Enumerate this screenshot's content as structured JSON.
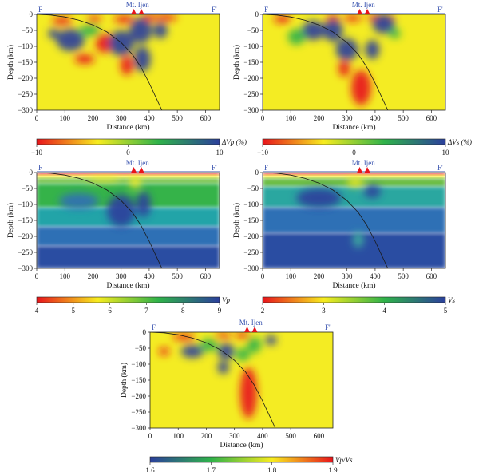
{
  "common": {
    "volcano_label": "Mt. Ijen",
    "profile_start": "F",
    "profile_end": "F'",
    "xlabel": "Distance (km)",
    "ylabel": "Depth (km)",
    "x_ticks": [
      0,
      100,
      200,
      300,
      400,
      500,
      600
    ],
    "y_ticks": [
      0,
      -50,
      -100,
      -150,
      -200,
      -250,
      -300
    ],
    "xlim": [
      0,
      650
    ],
    "ylim": [
      -300,
      0
    ],
    "volcano_x_km": [
      345,
      372
    ],
    "slab_curve_km": [
      [
        0,
        0
      ],
      [
        50,
        -2
      ],
      [
        100,
        -8
      ],
      [
        150,
        -18
      ],
      [
        200,
        -33
      ],
      [
        250,
        -55
      ],
      [
        300,
        -88
      ],
      [
        340,
        -125
      ],
      [
        370,
        -165
      ],
      [
        400,
        -215
      ],
      [
        425,
        -262
      ],
      [
        445,
        -300
      ]
    ]
  },
  "panels": [
    {
      "id": "dvp",
      "colorbar_label": "ΔVp (%)",
      "colorbar_ticks": [
        "−10",
        "0",
        "10"
      ],
      "colormap": [
        "#e8141b",
        "#f7ec1f",
        "#2fb24a",
        "#2b3f9c"
      ],
      "background_color": "#f4ec23",
      "anomalies": [
        {
          "x": 90,
          "y": -20,
          "rx": 35,
          "ry": 12,
          "color": "#e8141b"
        },
        {
          "x": 205,
          "y": -15,
          "rx": 25,
          "ry": 10,
          "color": "#e8141b"
        },
        {
          "x": 310,
          "y": -15,
          "rx": 35,
          "ry": 12,
          "color": "#e8141b"
        },
        {
          "x": 400,
          "y": -10,
          "rx": 30,
          "ry": 10,
          "color": "#e8141b"
        },
        {
          "x": 460,
          "y": -10,
          "rx": 40,
          "ry": 10,
          "color": "#e8141b"
        },
        {
          "x": 120,
          "y": -80,
          "rx": 50,
          "ry": 35,
          "color": "#2b3f9c"
        },
        {
          "x": 190,
          "y": -50,
          "rx": 35,
          "ry": 18,
          "color": "#2fb24a"
        },
        {
          "x": 240,
          "y": -90,
          "rx": 30,
          "ry": 30,
          "color": "#e8141b"
        },
        {
          "x": 300,
          "y": -90,
          "rx": 45,
          "ry": 40,
          "color": "#2b3f9c"
        },
        {
          "x": 370,
          "y": -50,
          "rx": 40,
          "ry": 40,
          "color": "#2b3f9c"
        },
        {
          "x": 320,
          "y": -160,
          "rx": 22,
          "ry": 30,
          "color": "#e8141b"
        },
        {
          "x": 375,
          "y": -140,
          "rx": 30,
          "ry": 40,
          "color": "#2b3f9c"
        },
        {
          "x": 440,
          "y": -50,
          "rx": 25,
          "ry": 25,
          "color": "#2b3f9c"
        },
        {
          "x": 170,
          "y": -140,
          "rx": 35,
          "ry": 15,
          "color": "#e8141b"
        },
        {
          "x": 60,
          "y": -60,
          "rx": 20,
          "ry": 15,
          "color": "#2b3f9c"
        }
      ]
    },
    {
      "id": "dvs",
      "colorbar_label": "ΔVs (%)",
      "colorbar_ticks": [
        "−10",
        "0",
        "10"
      ],
      "colormap": [
        "#e8141b",
        "#f7ec1f",
        "#2fb24a",
        "#2b3f9c"
      ],
      "background_color": "#f4ec23",
      "anomalies": [
        {
          "x": 70,
          "y": -15,
          "rx": 30,
          "ry": 12,
          "color": "#e8141b"
        },
        {
          "x": 250,
          "y": -10,
          "rx": 25,
          "ry": 8,
          "color": "#e8141b"
        },
        {
          "x": 320,
          "y": -12,
          "rx": 30,
          "ry": 10,
          "color": "#e8141b"
        },
        {
          "x": 420,
          "y": -10,
          "rx": 50,
          "ry": 10,
          "color": "#e8141b"
        },
        {
          "x": 180,
          "y": -50,
          "rx": 40,
          "ry": 30,
          "color": "#2b3f9c"
        },
        {
          "x": 250,
          "y": -50,
          "rx": 35,
          "ry": 35,
          "color": "#2b3f9c"
        },
        {
          "x": 120,
          "y": -70,
          "rx": 30,
          "ry": 25,
          "color": "#2fb24a"
        },
        {
          "x": 300,
          "y": -110,
          "rx": 40,
          "ry": 35,
          "color": "#2b3f9c"
        },
        {
          "x": 350,
          "y": -230,
          "rx": 35,
          "ry": 55,
          "color": "#e8141b"
        },
        {
          "x": 290,
          "y": -170,
          "rx": 20,
          "ry": 25,
          "color": "#e8141b"
        },
        {
          "x": 390,
          "y": -110,
          "rx": 25,
          "ry": 30,
          "color": "#2b3f9c"
        },
        {
          "x": 430,
          "y": -30,
          "rx": 40,
          "ry": 30,
          "color": "#2b3f9c"
        },
        {
          "x": 470,
          "y": -60,
          "rx": 20,
          "ry": 15,
          "color": "#2fb24a"
        }
      ]
    },
    {
      "id": "vp",
      "colorbar_label": "Vp",
      "colorbar_ticks": [
        "4",
        "5",
        "6",
        "7",
        "8",
        "9"
      ],
      "colormap": [
        "#e8141b",
        "#f7ec1f",
        "#2fb24a",
        "#2b3f9c"
      ],
      "layers": [
        {
          "top": 0,
          "bottom": -8,
          "color": "#e8141b"
        },
        {
          "top": -8,
          "bottom": -18,
          "color": "#f4ec23"
        },
        {
          "top": -18,
          "bottom": -35,
          "color": "#7dc346"
        },
        {
          "top": -35,
          "bottom": -110,
          "color": "#35b34a"
        },
        {
          "top": -110,
          "bottom": -170,
          "color": "#20a4a8"
        },
        {
          "top": -170,
          "bottom": -230,
          "color": "#2f6fb5"
        },
        {
          "top": -230,
          "bottom": -300,
          "color": "#2b4ea2"
        }
      ],
      "anomalies": [
        {
          "x": 150,
          "y": -90,
          "rx": 70,
          "ry": 25,
          "color": "#2f6fb5"
        },
        {
          "x": 300,
          "y": -120,
          "rx": 50,
          "ry": 50,
          "color": "#2b3f9c"
        },
        {
          "x": 380,
          "y": -100,
          "rx": 25,
          "ry": 40,
          "color": "#2b3f9c"
        },
        {
          "x": 350,
          "y": -30,
          "rx": 20,
          "ry": 20,
          "color": "#f4ec23"
        },
        {
          "x": 240,
          "y": -20,
          "rx": 60,
          "ry": 8,
          "color": "#f4ec23"
        }
      ]
    },
    {
      "id": "vs",
      "colorbar_label": "Vs",
      "colorbar_ticks": [
        "2",
        "3",
        "4",
        "5"
      ],
      "colormap": [
        "#e8141b",
        "#f7ec1f",
        "#2fb24a",
        "#2b3f9c"
      ],
      "layers": [
        {
          "top": 0,
          "bottom": -8,
          "color": "#e8141b"
        },
        {
          "top": -8,
          "bottom": -18,
          "color": "#f4ec23"
        },
        {
          "top": -18,
          "bottom": -45,
          "color": "#6cbd45"
        },
        {
          "top": -45,
          "bottom": -110,
          "color": "#2aa7a0"
        },
        {
          "top": -110,
          "bottom": -190,
          "color": "#2f6fb5"
        },
        {
          "top": -190,
          "bottom": -300,
          "color": "#2b4ea2"
        }
      ],
      "anomalies": [
        {
          "x": 200,
          "y": -80,
          "rx": 80,
          "ry": 30,
          "color": "#2b3f9c"
        },
        {
          "x": 390,
          "y": -60,
          "rx": 30,
          "ry": 20,
          "color": "#2b3f9c"
        },
        {
          "x": 340,
          "y": -210,
          "rx": 18,
          "ry": 25,
          "color": "#3fb8a0"
        },
        {
          "x": 330,
          "y": -30,
          "rx": 30,
          "ry": 15,
          "color": "#f4ec23"
        }
      ]
    },
    {
      "id": "vpvs",
      "colorbar_label": "Vp/Vs",
      "colorbar_ticks": [
        "1.6",
        "1.7",
        "1.8",
        "1.9"
      ],
      "colormap": [
        "#2b3f9c",
        "#2fb24a",
        "#f7ec1f",
        "#e8141b"
      ],
      "background_color": "#f4ec23",
      "anomalies": [
        {
          "x": 120,
          "y": -15,
          "rx": 40,
          "ry": 10,
          "color": "#e8141b"
        },
        {
          "x": 260,
          "y": -10,
          "rx": 30,
          "ry": 8,
          "color": "#e8141b"
        },
        {
          "x": 330,
          "y": -10,
          "rx": 25,
          "ry": 10,
          "color": "#e8141b"
        },
        {
          "x": 150,
          "y": -60,
          "rx": 40,
          "ry": 20,
          "color": "#2b3f9c"
        },
        {
          "x": 50,
          "y": -60,
          "rx": 18,
          "ry": 12,
          "color": "#e8141b"
        },
        {
          "x": 210,
          "y": -40,
          "rx": 30,
          "ry": 20,
          "color": "#2fb24a"
        },
        {
          "x": 270,
          "y": -60,
          "rx": 30,
          "ry": 25,
          "color": "#2b3f9c"
        },
        {
          "x": 260,
          "y": -110,
          "rx": 20,
          "ry": 20,
          "color": "#2b3f9c"
        },
        {
          "x": 350,
          "y": -190,
          "rx": 30,
          "ry": 80,
          "color": "#e8141b"
        },
        {
          "x": 370,
          "y": -40,
          "rx": 25,
          "ry": 25,
          "color": "#2fb24a"
        },
        {
          "x": 430,
          "y": -25,
          "rx": 20,
          "ry": 15,
          "color": "#2b3f9c"
        },
        {
          "x": 330,
          "y": -70,
          "rx": 25,
          "ry": 20,
          "color": "#2fb24a"
        }
      ]
    }
  ]
}
